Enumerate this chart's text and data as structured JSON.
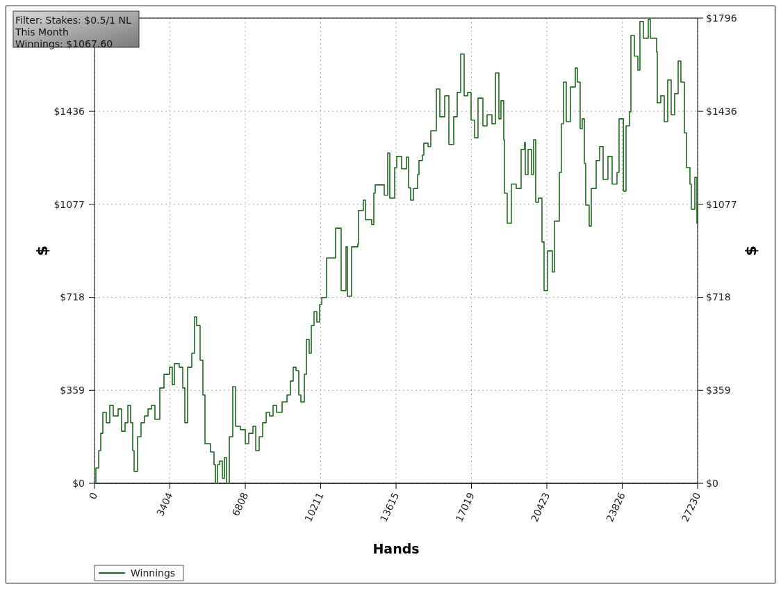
{
  "chart_data": {
    "type": "step",
    "xlabel": "Hands",
    "ylabel": "$",
    "y2label": "$",
    "annotations": [
      "Filter: Stakes: $0.5/1 NL",
      "This Month",
      "Winnings: $1067.60"
    ],
    "xlim": [
      0,
      27230
    ],
    "xticks": [
      0,
      3404,
      6808,
      10211,
      13615,
      17019,
      20423,
      23826,
      27230
    ],
    "ylim": [
      0,
      1796
    ],
    "yticks": [
      {
        "value": 0,
        "label": "$0"
      },
      {
        "value": 359,
        "label": "$359"
      },
      {
        "value": 718,
        "label": "$718"
      },
      {
        "value": 1077,
        "label": "$1077"
      },
      {
        "value": 1436,
        "label": "$1436"
      },
      {
        "value": 1796,
        "label": null
      }
    ],
    "y2lim": [
      0,
      1796
    ],
    "y2ticks": [
      {
        "value": 0,
        "label": "$0"
      },
      {
        "value": 359,
        "label": "$359"
      },
      {
        "value": 718,
        "label": "$718"
      },
      {
        "value": 1077,
        "label": "$1077"
      },
      {
        "value": 1436,
        "label": "$1436"
      },
      {
        "value": 1796,
        "label": "$1796"
      }
    ],
    "grid": true,
    "legend": "bottom left",
    "marker": "none",
    "line_style": "solid",
    "series": [
      {
        "name": "Winnings",
        "color": "#1e6b1e",
        "x": [
          0,
          63,
          188,
          282,
          376,
          533,
          690,
          847,
          1067,
          1223,
          1380,
          1506,
          1631,
          1725,
          1788,
          1945,
          2102,
          2259,
          2415,
          2572,
          2729,
          2949,
          3137,
          3388,
          3513,
          3607,
          3827,
          3984,
          4078,
          4203,
          4392,
          4517,
          4611,
          4768,
          4894,
          4988,
          5239,
          5396,
          5459,
          5553,
          5647,
          5773,
          5867,
          5961,
          6086,
          6243,
          6369,
          6588,
          6808,
          6965,
          7153,
          7279,
          7436,
          7593,
          7750,
          7906,
          8063,
          8220,
          8471,
          8690,
          8847,
          8972,
          9098,
          9223,
          9317,
          9474,
          9568,
          9693,
          9788,
          9913,
          10039,
          10164,
          10259,
          10415,
          10478,
          10885,
          11136,
          11356,
          11419,
          11607,
          11889,
          11920,
          12140,
          12234,
          12517,
          12611,
          12673,
          12924,
          13081,
          13238,
          13332,
          13552,
          13646,
          13865,
          14085,
          14179,
          14273,
          14399,
          14587,
          14650,
          14807,
          14869,
          15058,
          15183,
          15434,
          15591,
          15811,
          15999,
          16218,
          16375,
          16532,
          16689,
          16846,
          17003,
          17160,
          17316,
          17536,
          17724,
          17944,
          18101,
          18257,
          18351,
          18477,
          18508,
          18634,
          18728,
          18822,
          19041,
          19261,
          19418,
          19449,
          19575,
          19731,
          19825,
          19920,
          20045,
          20202,
          20296,
          20453,
          20673,
          20767,
          20987,
          21081,
          21175,
          21300,
          21488,
          21708,
          21802,
          21927,
          22021,
          22116,
          22178,
          22335,
          22429,
          22649,
          22806,
          22962,
          23182,
          23370,
          23590,
          23684,
          23880,
          23998,
          24155,
          24218,
          24374,
          24531,
          24625,
          24782,
          25002,
          25096,
          25378,
          25409,
          25566,
          25723,
          25880,
          26037,
          26194,
          26351,
          26476,
          26633,
          26727,
          26884,
          26947,
          27104,
          27198,
          27230
        ],
        "values": [
          0,
          59,
          126,
          193,
          274,
          234,
          301,
          260,
          287,
          201,
          234,
          301,
          234,
          126,
          46,
          180,
          234,
          260,
          287,
          301,
          247,
          368,
          421,
          448,
          381,
          462,
          448,
          368,
          234,
          448,
          502,
          642,
          609,
          475,
          341,
          153,
          121,
          72,
          0,
          72,
          86,
          19,
          99,
          0,
          180,
          373,
          220,
          207,
          153,
          193,
          220,
          126,
          180,
          234,
          274,
          260,
          301,
          274,
          314,
          341,
          395,
          448,
          435,
          341,
          314,
          421,
          555,
          502,
          609,
          663,
          623,
          690,
          717,
          717,
          870,
          985,
          744,
          913,
          722,
          913,
          924,
          1053,
          1093,
          1018,
          999,
          1120,
          1152,
          1152,
          1112,
          1275,
          1101,
          1219,
          1262,
          1214,
          1259,
          1141,
          1093,
          1138,
          1192,
          1246,
          1267,
          1313,
          1300,
          1361,
          1522,
          1415,
          1496,
          1308,
          1415,
          1509,
          1657,
          1496,
          1509,
          1402,
          1334,
          1487,
          1380,
          1423,
          1388,
          1584,
          1407,
          1477,
          1326,
          1120,
          1004,
          1004,
          1155,
          1138,
          1289,
          1316,
          1192,
          1289,
          1192,
          1326,
          1085,
          1101,
          932,
          744,
          897,
          816,
          1012,
          1200,
          1388,
          1549,
          1396,
          1530,
          1603,
          1549,
          1369,
          1407,
          1235,
          1074,
          993,
          1138,
          1246,
          1300,
          1173,
          1262,
          1155,
          1200,
          1407,
          1128,
          1380,
          1434,
          1729,
          1649,
          1595,
          1783,
          1718,
          1791,
          1718,
          1665,
          1469,
          1496,
          1396,
          1557,
          1423,
          1504,
          1630,
          1549,
          1353,
          1219,
          1155,
          1058,
          1181,
          1004,
          1068
        ]
      }
    ]
  }
}
